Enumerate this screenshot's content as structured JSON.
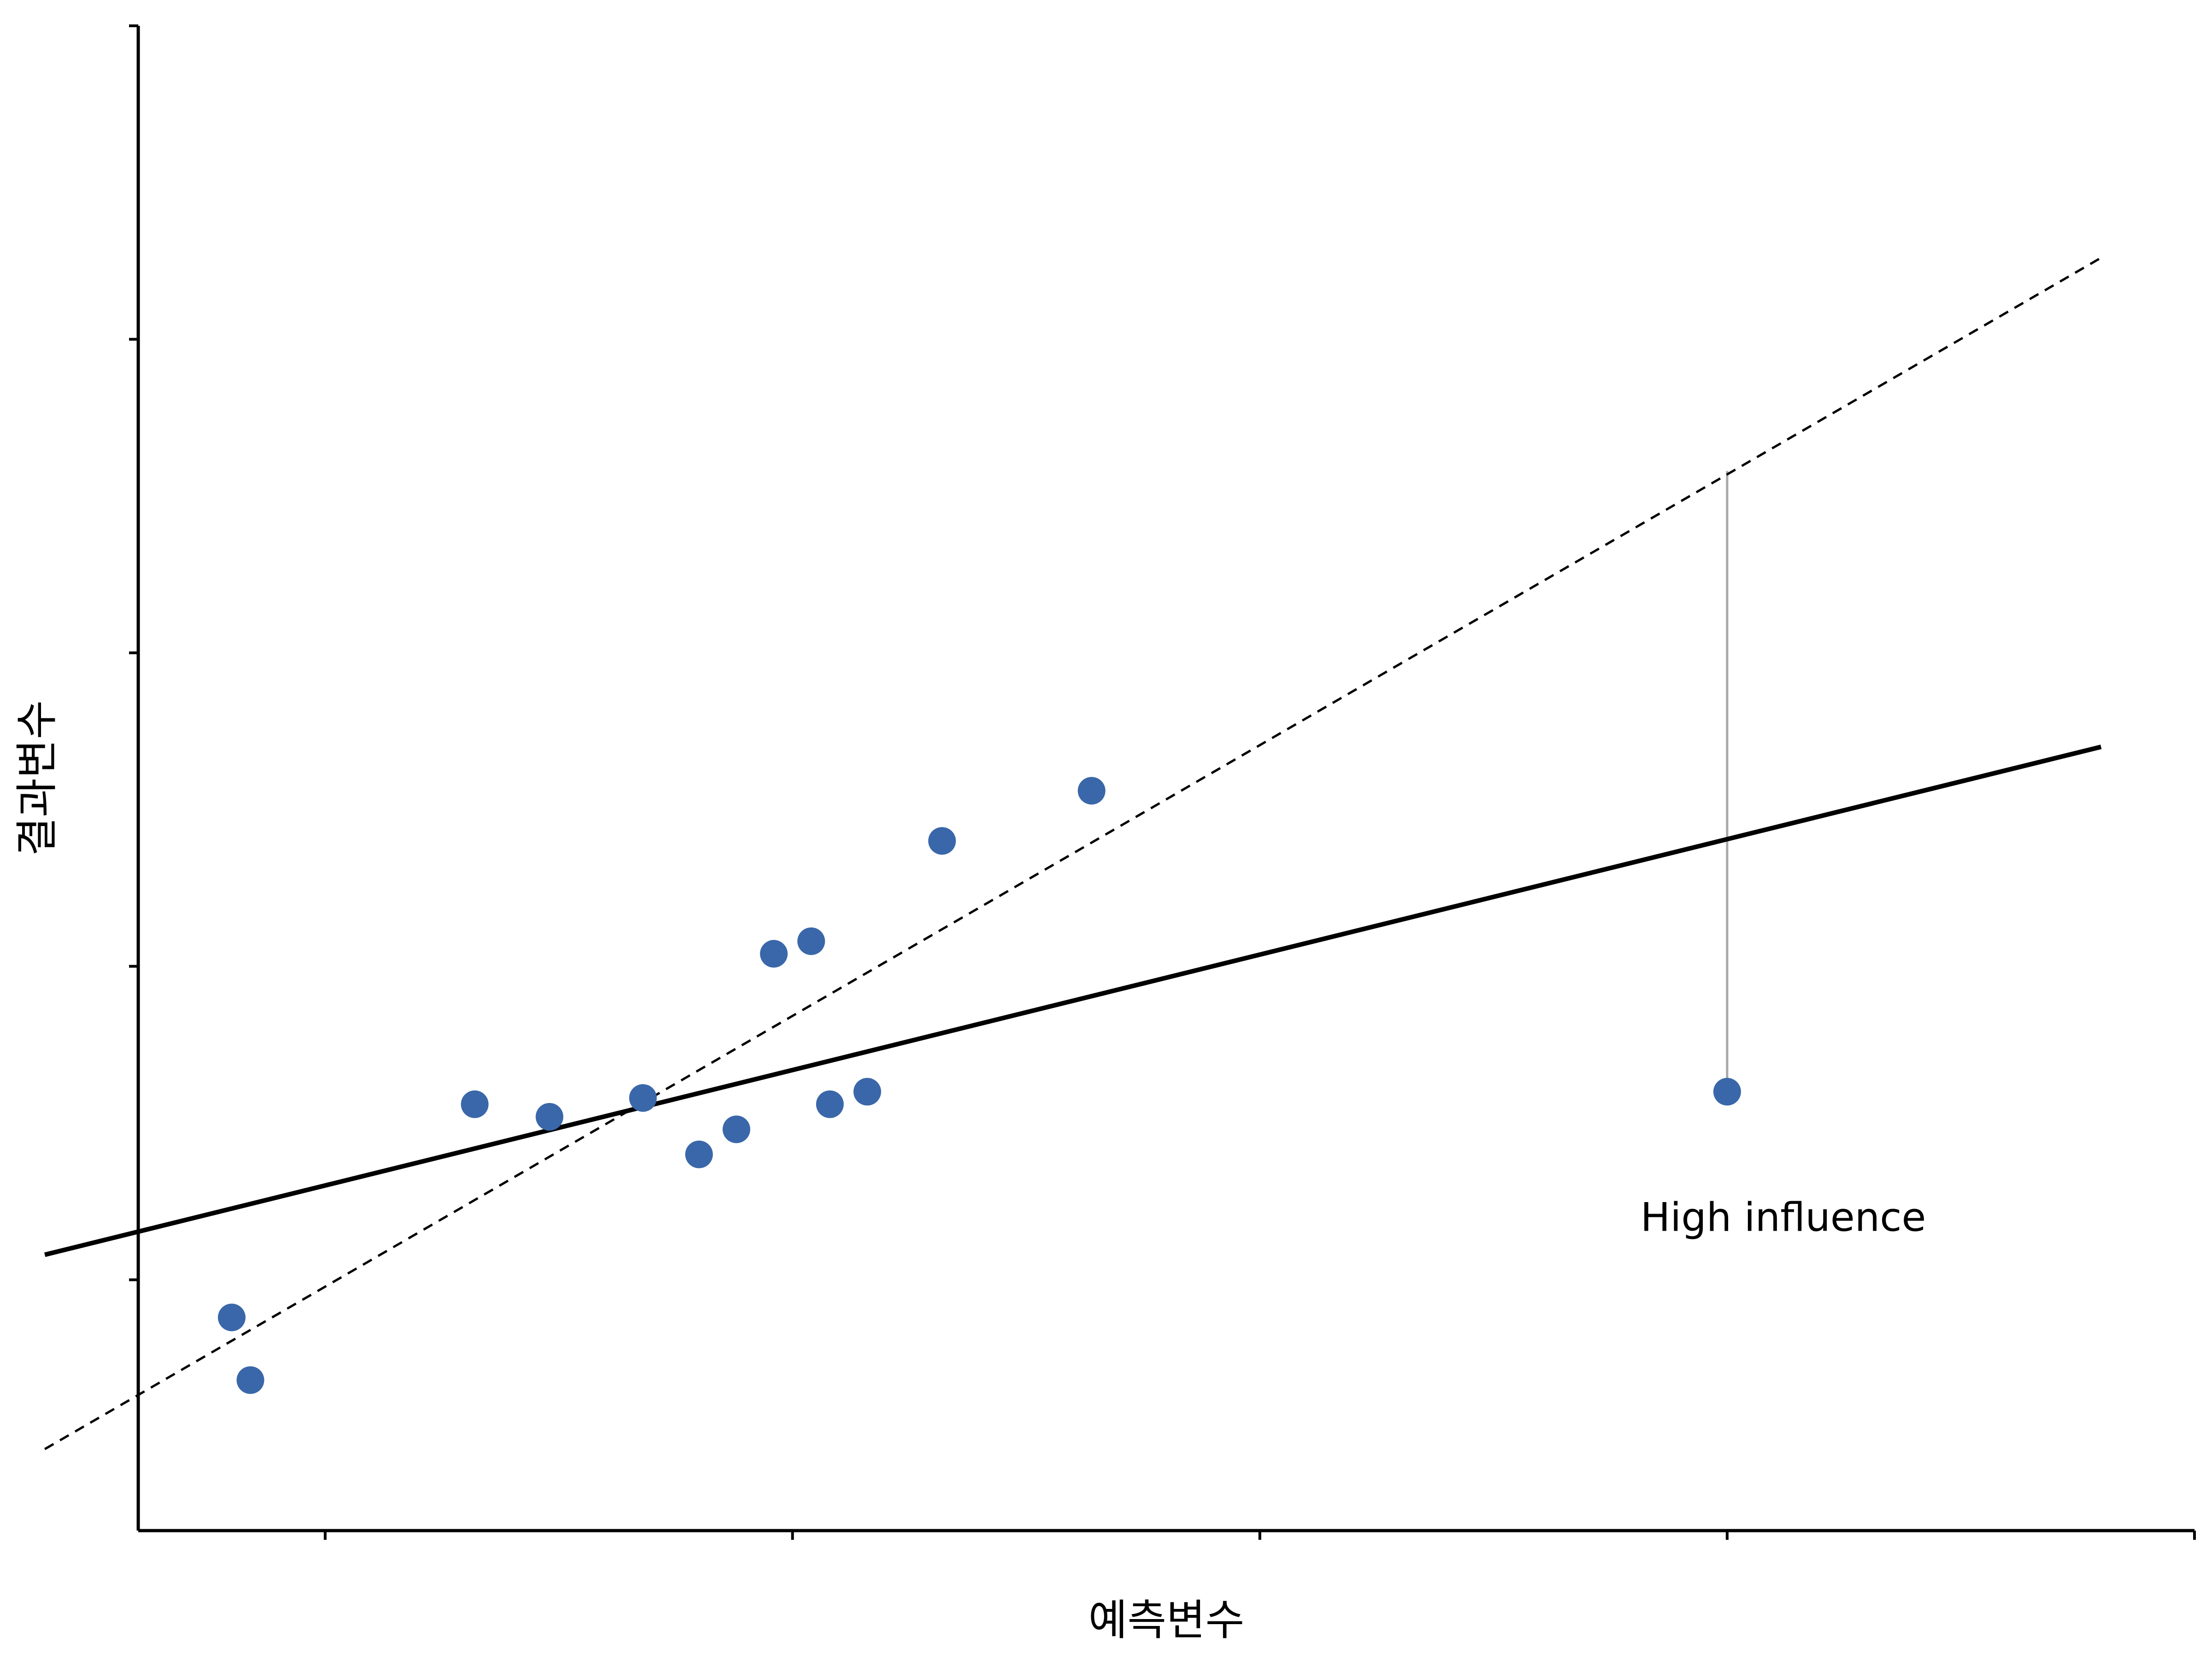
{
  "chart_data": {
    "type": "scatter",
    "title": "",
    "xlabel": "예측변수",
    "ylabel": "결과변수",
    "xlim": [
      -0.4,
      4.0
    ],
    "ylim": [
      -0.8,
      4.0
    ],
    "x_ticks": [
      0,
      1,
      2,
      3,
      4
    ],
    "y_ticks": [
      0,
      1,
      2,
      3,
      4
    ],
    "show_tick_labels": false,
    "grid": false,
    "legend": "none",
    "colors": {
      "points": "#3a67a9",
      "fit_all": "#000000",
      "fit_without_influential": "#000000",
      "leverage_segment": "#a8a8a8"
    },
    "points": [
      {
        "x": -0.2,
        "y": -0.12
      },
      {
        "x": -0.16,
        "y": -0.32
      },
      {
        "x": 0.32,
        "y": 0.56
      },
      {
        "x": 0.48,
        "y": 0.52
      },
      {
        "x": 0.68,
        "y": 0.58
      },
      {
        "x": 0.8,
        "y": 0.4
      },
      {
        "x": 0.88,
        "y": 0.48
      },
      {
        "x": 0.96,
        "y": 1.04
      },
      {
        "x": 1.04,
        "y": 1.08
      },
      {
        "x": 1.08,
        "y": 0.56
      },
      {
        "x": 1.16,
        "y": 0.6
      },
      {
        "x": 1.32,
        "y": 1.4
      },
      {
        "x": 1.64,
        "y": 1.56
      },
      {
        "x": 3.0,
        "y": 0.6
      }
    ],
    "lines": [
      {
        "style": "solid",
        "x": [
          -0.6,
          3.8
        ],
        "y": [
          0.08,
          1.7
        ]
      },
      {
        "style": "dashed",
        "x": [
          -0.6,
          3.8
        ],
        "y": [
          -0.54,
          3.26
        ]
      }
    ],
    "influence_segment": {
      "x": 3.0,
      "y_from": 0.6,
      "y_to": 2.58
    },
    "annotations": [
      {
        "text": "High influence",
        "x": 3.12,
        "y": 0.2
      }
    ]
  }
}
